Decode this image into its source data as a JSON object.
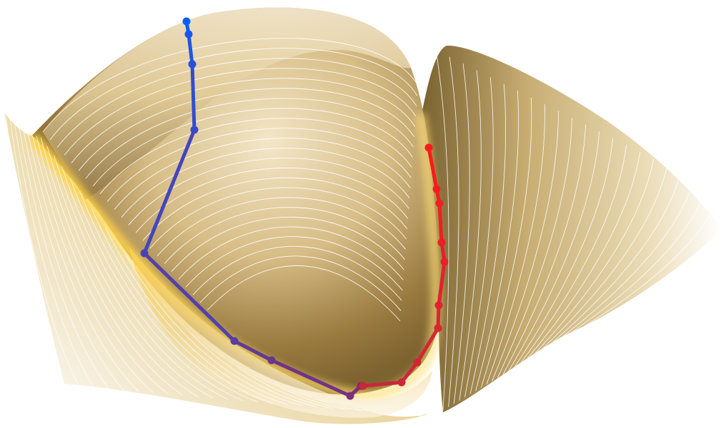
{
  "figure": {
    "surface": {
      "colors": {
        "light": "#fbf6ea",
        "mid": "#e6d3a6",
        "dark": "#8a7038",
        "glow": "#ffd23e"
      },
      "contour_color": "#ffffff"
    },
    "paths": [
      {
        "id": "gradient-descent-path",
        "color_start": "#0a5cff",
        "color_end": "#8a2a6a"
      },
      {
        "id": "second-path",
        "color_start": "#ff1a1a",
        "color_end": "#c42a3c"
      }
    ]
  }
}
